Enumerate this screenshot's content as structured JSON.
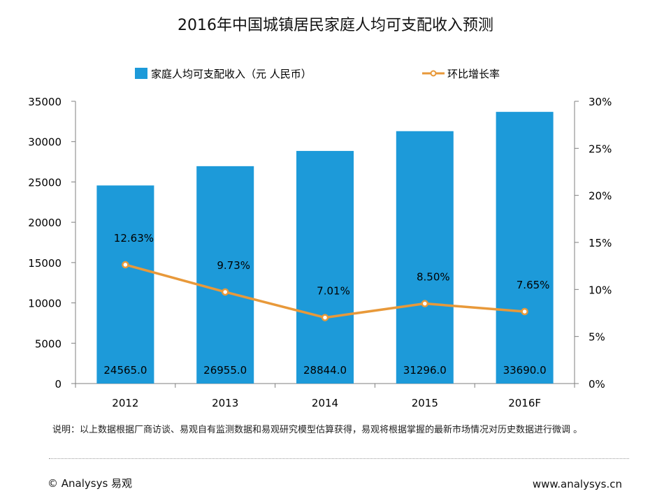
{
  "page": {
    "title": "2016年中国城镇居民家庭人均可支配收入预测",
    "note": "说明：以上数据根据厂商访谈、易观自有监测数据和易观研究模型估算获得，易观将根据掌握的最新市场情况对历史数据进行微调 。",
    "footer_left": "© Analysys 易观",
    "footer_right": "www.analysys.cn"
  },
  "colors": {
    "bar": "#1d9ad9",
    "line": "#e8993a",
    "marker_fill": "#ffffff",
    "axis": "#7f7f7f"
  },
  "chart_data": {
    "type": "bar",
    "title": "2016年中国城镇居民家庭人均可支配收入预测",
    "categories": [
      "2012",
      "2013",
      "2014",
      "2015",
      "2016F"
    ],
    "series": [
      {
        "name": "家庭人均可支配收入（元 人民币）",
        "type": "bar",
        "axis": "left",
        "values": [
          24565.0,
          26955.0,
          28844.0,
          31296.0,
          33690.0
        ],
        "data_labels": [
          "24565.0",
          "26955.0",
          "28844.0",
          "31296.0",
          "33690.0"
        ]
      },
      {
        "name": "环比增长率",
        "type": "line",
        "axis": "right",
        "values": [
          12.63,
          9.73,
          7.01,
          8.5,
          7.65
        ],
        "data_labels": [
          "12.63%",
          "9.73%",
          "7.01%",
          "8.50%",
          "7.65%"
        ]
      }
    ],
    "y_left": {
      "ylim": [
        0,
        35000
      ],
      "ticks": [
        "0",
        "5000",
        "10000",
        "15000",
        "20000",
        "25000",
        "30000",
        "35000"
      ]
    },
    "y_right": {
      "ylim": [
        0,
        30
      ],
      "ticks": [
        "0%",
        "5%",
        "10%",
        "15%",
        "20%",
        "25%",
        "30%"
      ]
    },
    "grid": false,
    "legend": "top"
  }
}
